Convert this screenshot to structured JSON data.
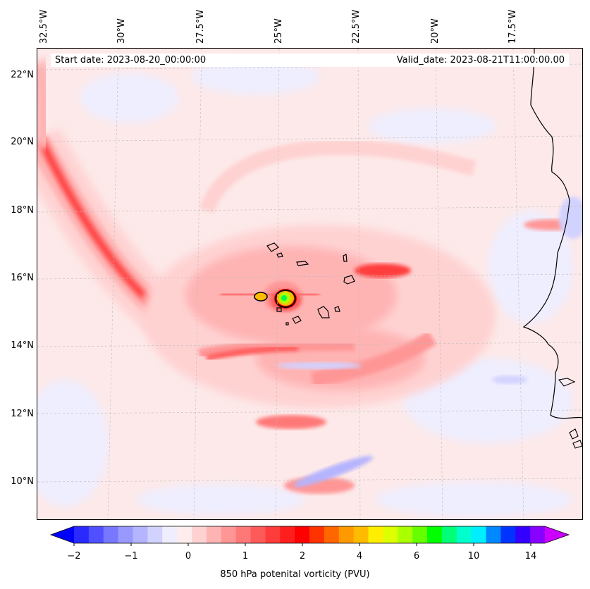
{
  "header": {
    "start_date": "Start date: 2023-08-20_00:00:00",
    "valid_date": "Valid_date: 2023-08-21T11:00:00.00"
  },
  "axes": {
    "lon_labels": [
      "32.5°W",
      "30°W",
      "27.5°W",
      "25°W",
      "22.5°W",
      "20°W",
      "17.5°W"
    ],
    "lat_labels": [
      "22°N",
      "20°N",
      "18°N",
      "16°N",
      "14°N",
      "12°N",
      "10°N"
    ]
  },
  "colorbar": {
    "title": "850 hPa potenital vorticity (PVU)",
    "tick_labels": [
      "−2",
      "−1",
      "0",
      "1",
      "2",
      "4",
      "6",
      "10",
      "14"
    ],
    "colors": [
      "#0000ff",
      "#2a2aff",
      "#5050ff",
      "#7878ff",
      "#9898ff",
      "#b4b4ff",
      "#d2d2ff",
      "#eeeeff",
      "#ffecec",
      "#ffd2d2",
      "#ffb4b4",
      "#ff9696",
      "#ff7878",
      "#ff5a5a",
      "#ff3c3c",
      "#ff1e1e",
      "#ff0000",
      "#ff3300",
      "#ff6600",
      "#ff9900",
      "#ffbb00",
      "#ffee00",
      "#ddff00",
      "#aaff00",
      "#66ff00",
      "#00ff00",
      "#00ff77",
      "#00ffcc",
      "#00eeff",
      "#0088ff",
      "#0033ff",
      "#3300ff",
      "#8800ff",
      "#cc00ff"
    ]
  }
}
